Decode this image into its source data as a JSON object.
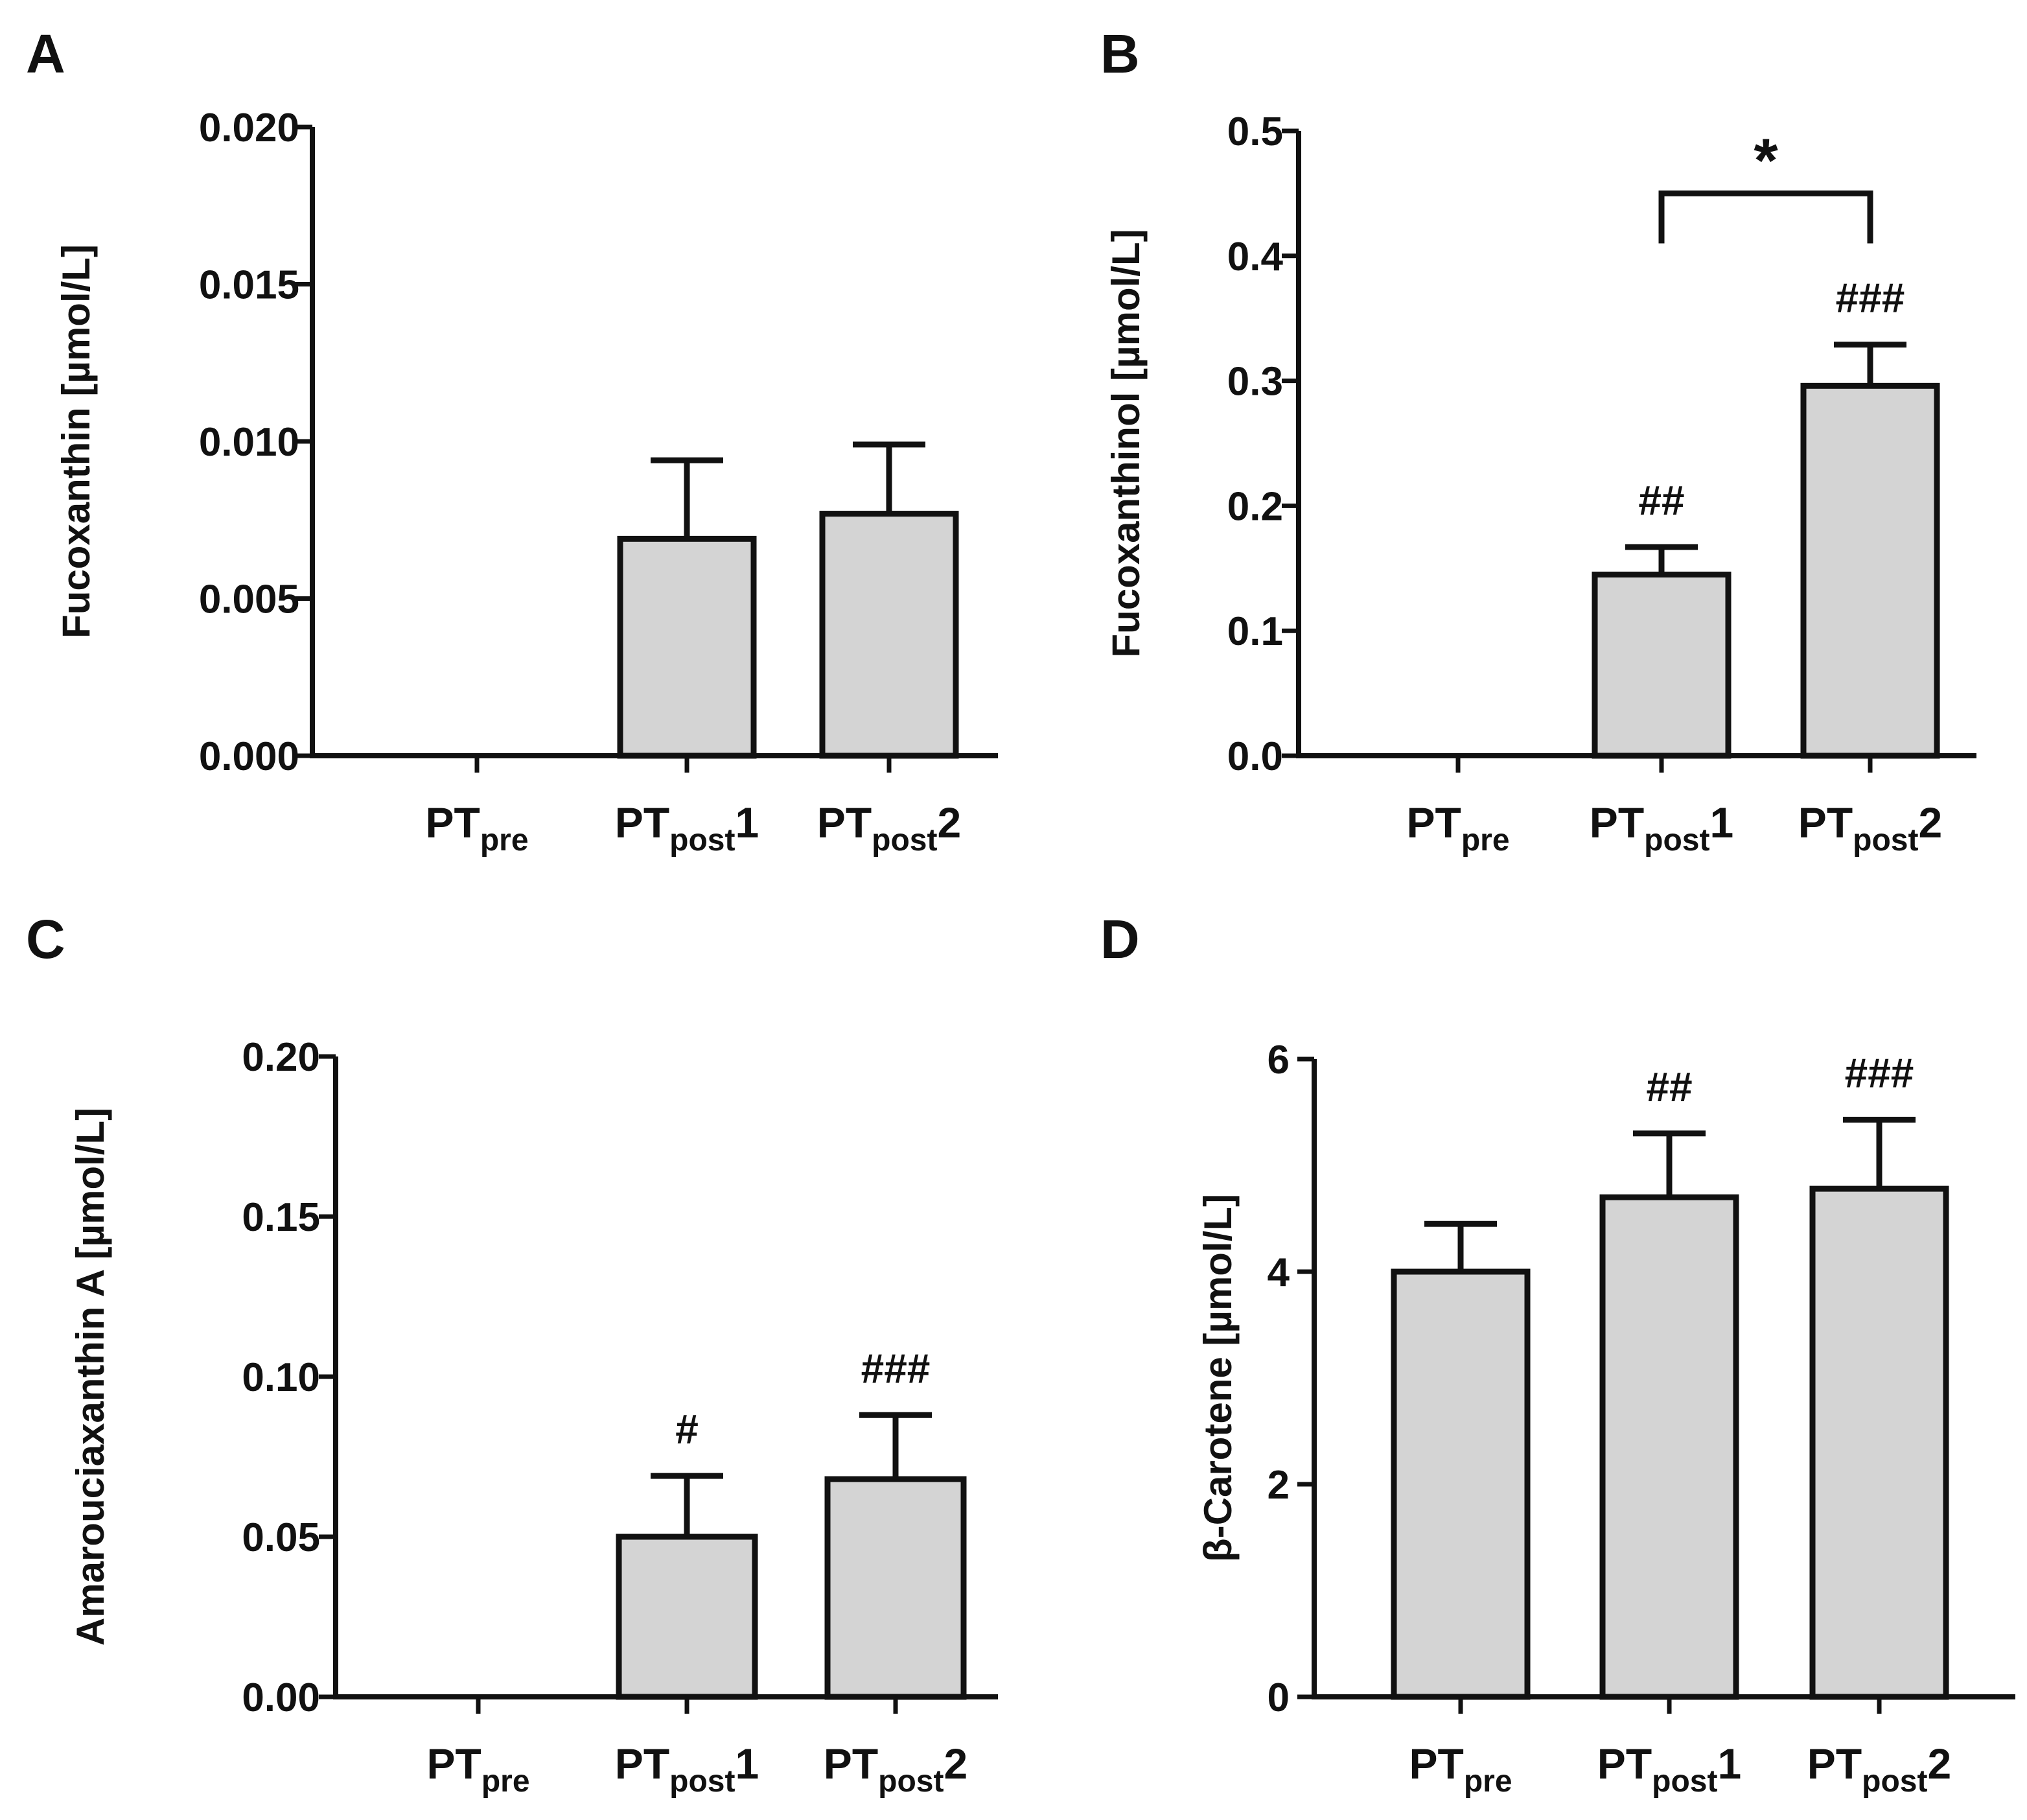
{
  "chart_data": [
    {
      "panel": "A",
      "type": "bar",
      "ylabel": "Fucoxanthin [µmol/L]",
      "ylim": [
        0,
        0.02
      ],
      "yticks": [
        "0.000",
        "0.005",
        "0.010",
        "0.015",
        "0.020"
      ],
      "categories": [
        {
          "main": "PT",
          "sub": "pre",
          "suffix": ""
        },
        {
          "main": "PT",
          "sub": "post",
          "suffix": "1"
        },
        {
          "main": "PT",
          "sub": "post",
          "suffix": "2"
        }
      ],
      "values": [
        0,
        0.0069,
        0.0077
      ],
      "errors": [
        0,
        0.0025,
        0.0022
      ],
      "annotations": [
        "",
        "",
        ""
      ],
      "brackets": []
    },
    {
      "panel": "B",
      "type": "bar",
      "ylabel": "Fucoxanthinol [µmol/L]",
      "ylim": [
        0,
        0.5
      ],
      "yticks": [
        "0.0",
        "0.1",
        "0.2",
        "0.3",
        "0.4",
        "0.5"
      ],
      "categories": [
        {
          "main": "PT",
          "sub": "pre",
          "suffix": ""
        },
        {
          "main": "PT",
          "sub": "post",
          "suffix": "1"
        },
        {
          "main": "PT",
          "sub": "post",
          "suffix": "2"
        }
      ],
      "values": [
        0,
        0.145,
        0.296
      ],
      "errors": [
        0,
        0.022,
        0.033
      ],
      "annotations": [
        "",
        "##",
        "###"
      ],
      "brackets": [
        {
          "from": 1,
          "to": 2,
          "label": "*",
          "y": 0.45,
          "drop": 0.04
        }
      ]
    },
    {
      "panel": "C",
      "type": "bar",
      "ylabel": "Amarouciaxanthin A [µmol/L]",
      "ylim": [
        0,
        0.2
      ],
      "yticks": [
        "0.00",
        "0.05",
        "0.10",
        "0.15",
        "0.20"
      ],
      "categories": [
        {
          "main": "PT",
          "sub": "pre",
          "suffix": ""
        },
        {
          "main": "PT",
          "sub": "post",
          "suffix": "1"
        },
        {
          "main": "PT",
          "sub": "post",
          "suffix": "2"
        }
      ],
      "values": [
        0,
        0.05,
        0.068
      ],
      "errors": [
        0,
        0.019,
        0.02
      ],
      "annotations": [
        "",
        "#",
        "###"
      ],
      "brackets": []
    },
    {
      "panel": "D",
      "type": "bar",
      "ylabel": "β-Carotene [µmol/L]",
      "ylim": [
        0,
        6
      ],
      "yticks": [
        "0",
        "2",
        "4",
        "6"
      ],
      "categories": [
        {
          "main": "PT",
          "sub": "pre",
          "suffix": ""
        },
        {
          "main": "PT",
          "sub": "post",
          "suffix": "1"
        },
        {
          "main": "PT",
          "sub": "post",
          "suffix": "2"
        }
      ],
      "values": [
        4.0,
        4.7,
        4.78
      ],
      "errors": [
        0.45,
        0.6,
        0.65
      ],
      "annotations": [
        "",
        "##",
        "###"
      ],
      "brackets": []
    }
  ],
  "colors": {
    "bar_fill": "#d4d4d4",
    "stroke": "#111111",
    "background": "#ffffff"
  }
}
